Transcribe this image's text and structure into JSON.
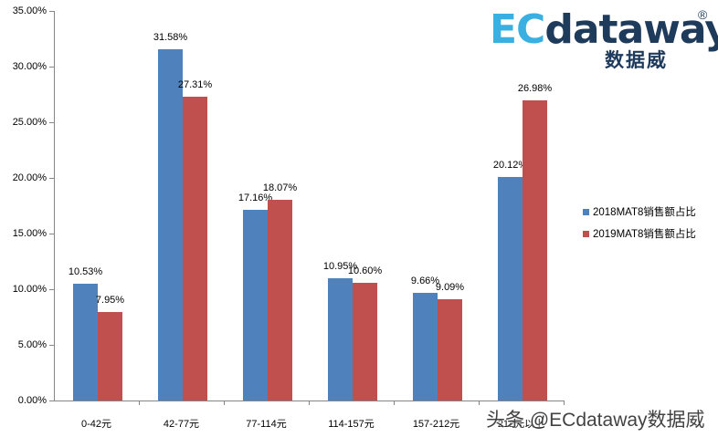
{
  "chart_data": {
    "type": "bar",
    "title": "",
    "xlabel": "",
    "ylabel": "",
    "ylim": [
      0,
      35
    ],
    "yticks": [
      "0.00%",
      "5.00%",
      "10.00%",
      "15.00%",
      "20.00%",
      "25.00%",
      "30.00%",
      "35.00%"
    ],
    "grid": false,
    "legend_position": "right",
    "categories": [
      "0-42元",
      "42-77元",
      "77-114元",
      "114-157元",
      "157-212元",
      "212元以上"
    ],
    "series": [
      {
        "name": "2018MAT8销售额占比",
        "color": "#4f81bd",
        "values": [
          10.53,
          31.58,
          17.16,
          10.95,
          9.66,
          20.12
        ],
        "labels": [
          "10.53%",
          "31.58%",
          "17.16%",
          "10.95%",
          "9.66%",
          "20.12%"
        ]
      },
      {
        "name": "2019MAT8销售额占比",
        "color": "#c0504d",
        "values": [
          7.95,
          27.31,
          18.07,
          10.6,
          9.09,
          26.98
        ],
        "labels": [
          "7.95%",
          "27.31%",
          "18.07%",
          "10.60%",
          "9.09%",
          "26.98%"
        ]
      }
    ]
  },
  "logo": {
    "ec": "EC",
    "rest": "dataway",
    "reg": "®",
    "sub": "数据威"
  },
  "watermark": "头条 @ECdataway数据威"
}
